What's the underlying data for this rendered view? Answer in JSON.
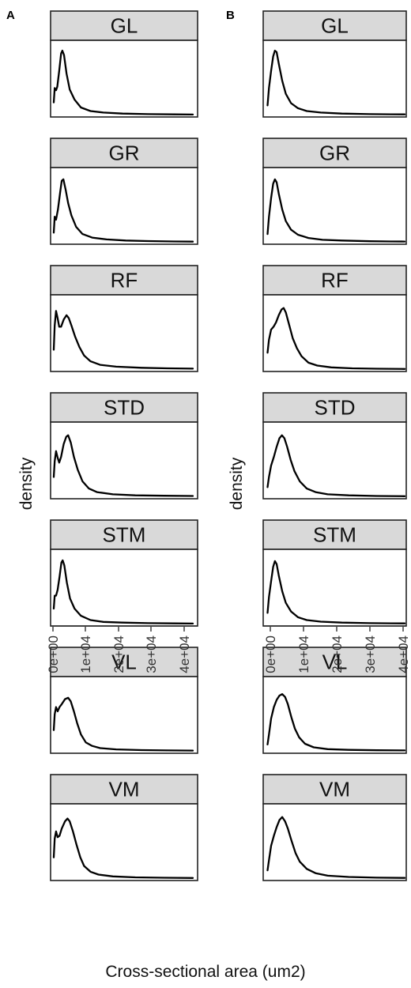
{
  "chart_data": [
    {
      "type": "area",
      "panel": "A",
      "ylabel": "density",
      "xlabel": "Cross-sectional area (um2)",
      "xlim": [
        0,
        45000
      ],
      "x_ticks": [
        "0e+00",
        "1e+04",
        "2e+04",
        "3e+04",
        "4e+04"
      ],
      "facets": [
        {
          "name": "GL",
          "points": [
            [
              500,
              0.18
            ],
            [
              800,
              0.38
            ],
            [
              1200,
              0.35
            ],
            [
              1600,
              0.4
            ],
            [
              2200,
              0.62
            ],
            [
              2800,
              0.86
            ],
            [
              3200,
              0.9
            ],
            [
              3700,
              0.84
            ],
            [
              4500,
              0.58
            ],
            [
              5500,
              0.36
            ],
            [
              7000,
              0.22
            ],
            [
              9000,
              0.11
            ],
            [
              12000,
              0.06
            ],
            [
              16000,
              0.04
            ],
            [
              22000,
              0.025
            ],
            [
              30000,
              0.018
            ],
            [
              38000,
              0.014
            ],
            [
              44000,
              0.012
            ]
          ]
        },
        {
          "name": "GR",
          "points": [
            [
              500,
              0.14
            ],
            [
              800,
              0.36
            ],
            [
              1200,
              0.32
            ],
            [
              1800,
              0.46
            ],
            [
              2500,
              0.7
            ],
            [
              3000,
              0.86
            ],
            [
              3500,
              0.88
            ],
            [
              4200,
              0.74
            ],
            [
              5000,
              0.55
            ],
            [
              6000,
              0.38
            ],
            [
              7500,
              0.22
            ],
            [
              9500,
              0.12
            ],
            [
              12500,
              0.07
            ],
            [
              17000,
              0.045
            ],
            [
              23000,
              0.03
            ],
            [
              30000,
              0.022
            ],
            [
              38000,
              0.016
            ],
            [
              44000,
              0.014
            ]
          ]
        },
        {
          "name": "RF",
          "points": [
            [
              500,
              0.28
            ],
            [
              800,
              0.62
            ],
            [
              1200,
              0.82
            ],
            [
              1700,
              0.72
            ],
            [
              2200,
              0.6
            ],
            [
              2800,
              0.6
            ],
            [
              3600,
              0.7
            ],
            [
              4500,
              0.76
            ],
            [
              5200,
              0.72
            ],
            [
              6000,
              0.62
            ],
            [
              7200,
              0.46
            ],
            [
              8500,
              0.32
            ],
            [
              10000,
              0.2
            ],
            [
              12000,
              0.12
            ],
            [
              15000,
              0.07
            ],
            [
              20000,
              0.045
            ],
            [
              28000,
              0.03
            ],
            [
              36000,
              0.022
            ],
            [
              44000,
              0.018
            ]
          ]
        },
        {
          "name": "STD",
          "points": [
            [
              500,
              0.28
            ],
            [
              800,
              0.5
            ],
            [
              1200,
              0.64
            ],
            [
              1700,
              0.55
            ],
            [
              2200,
              0.48
            ],
            [
              2800,
              0.56
            ],
            [
              3600,
              0.74
            ],
            [
              4400,
              0.84
            ],
            [
              5000,
              0.86
            ],
            [
              5800,
              0.76
            ],
            [
              6800,
              0.56
            ],
            [
              8000,
              0.38
            ],
            [
              9500,
              0.22
            ],
            [
              11500,
              0.12
            ],
            [
              14000,
              0.07
            ],
            [
              19000,
              0.04
            ],
            [
              26000,
              0.025
            ],
            [
              35000,
              0.02
            ],
            [
              44000,
              0.016
            ]
          ]
        },
        {
          "name": "STM",
          "points": [
            [
              500,
              0.22
            ],
            [
              800,
              0.4
            ],
            [
              1200,
              0.4
            ],
            [
              1700,
              0.48
            ],
            [
              2300,
              0.66
            ],
            [
              2900,
              0.86
            ],
            [
              3300,
              0.89
            ],
            [
              3800,
              0.82
            ],
            [
              4600,
              0.58
            ],
            [
              5600,
              0.36
            ],
            [
              7000,
              0.22
            ],
            [
              9000,
              0.12
            ],
            [
              12000,
              0.06
            ],
            [
              16000,
              0.035
            ],
            [
              22000,
              0.025
            ],
            [
              30000,
              0.018
            ],
            [
              38000,
              0.014
            ],
            [
              44000,
              0.012
            ]
          ]
        },
        {
          "name": "VL",
          "points": [
            [
              500,
              0.3
            ],
            [
              800,
              0.52
            ],
            [
              1200,
              0.62
            ],
            [
              1700,
              0.56
            ],
            [
              2300,
              0.62
            ],
            [
              3000,
              0.66
            ],
            [
              4000,
              0.73
            ],
            [
              5000,
              0.75
            ],
            [
              5800,
              0.7
            ],
            [
              6800,
              0.56
            ],
            [
              7800,
              0.4
            ],
            [
              9000,
              0.24
            ],
            [
              10500,
              0.13
            ],
            [
              12500,
              0.08
            ],
            [
              15000,
              0.05
            ],
            [
              20000,
              0.032
            ],
            [
              28000,
              0.022
            ],
            [
              36000,
              0.018
            ],
            [
              44000,
              0.015
            ]
          ]
        },
        {
          "name": "VM",
          "points": [
            [
              500,
              0.3
            ],
            [
              800,
              0.56
            ],
            [
              1200,
              0.66
            ],
            [
              1700,
              0.58
            ],
            [
              2300,
              0.6
            ],
            [
              3000,
              0.7
            ],
            [
              4000,
              0.8
            ],
            [
              4800,
              0.84
            ],
            [
              5500,
              0.8
            ],
            [
              6500,
              0.66
            ],
            [
              7600,
              0.48
            ],
            [
              8800,
              0.3
            ],
            [
              10000,
              0.18
            ],
            [
              12000,
              0.1
            ],
            [
              14500,
              0.06
            ],
            [
              19000,
              0.035
            ],
            [
              26000,
              0.022
            ],
            [
              35000,
              0.016
            ],
            [
              44000,
              0.013
            ]
          ]
        }
      ]
    },
    {
      "type": "area",
      "panel": "B",
      "ylabel": "density",
      "xlabel": "Cross-sectional area (um2)",
      "xlim": [
        0,
        40000
      ],
      "x_ticks": [
        "0e+00",
        "1e+04",
        "2e+04",
        "3e+04",
        "4e+04"
      ],
      "facets": [
        {
          "name": "GL",
          "points": [
            [
              800,
              0.14
            ],
            [
              1200,
              0.38
            ],
            [
              1800,
              0.62
            ],
            [
              2400,
              0.82
            ],
            [
              2900,
              0.9
            ],
            [
              3400,
              0.88
            ],
            [
              4000,
              0.72
            ],
            [
              5000,
              0.48
            ],
            [
              6000,
              0.3
            ],
            [
              7500,
              0.17
            ],
            [
              9500,
              0.1
            ],
            [
              12000,
              0.06
            ],
            [
              16000,
              0.04
            ],
            [
              22000,
              0.025
            ],
            [
              30000,
              0.018
            ],
            [
              36000,
              0.015
            ],
            [
              40000,
              0.014
            ]
          ]
        },
        {
          "name": "GR",
          "points": [
            [
              800,
              0.12
            ],
            [
              1200,
              0.36
            ],
            [
              1800,
              0.62
            ],
            [
              2400,
              0.82
            ],
            [
              2900,
              0.88
            ],
            [
              3400,
              0.84
            ],
            [
              4000,
              0.68
            ],
            [
              5000,
              0.46
            ],
            [
              6000,
              0.3
            ],
            [
              7500,
              0.18
            ],
            [
              9500,
              0.11
            ],
            [
              12500,
              0.065
            ],
            [
              16500,
              0.04
            ],
            [
              22000,
              0.03
            ],
            [
              30000,
              0.02
            ],
            [
              36000,
              0.016
            ],
            [
              40000,
              0.015
            ]
          ]
        },
        {
          "name": "RF",
          "points": [
            [
              800,
              0.24
            ],
            [
              1200,
              0.42
            ],
            [
              1800,
              0.56
            ],
            [
              2500,
              0.6
            ],
            [
              3200,
              0.66
            ],
            [
              4000,
              0.76
            ],
            [
              4800,
              0.84
            ],
            [
              5400,
              0.86
            ],
            [
              6000,
              0.8
            ],
            [
              7000,
              0.62
            ],
            [
              8000,
              0.44
            ],
            [
              9200,
              0.3
            ],
            [
              10500,
              0.19
            ],
            [
              12500,
              0.1
            ],
            [
              15000,
              0.06
            ],
            [
              19000,
              0.035
            ],
            [
              25000,
              0.022
            ],
            [
              32000,
              0.016
            ],
            [
              40000,
              0.013
            ]
          ]
        },
        {
          "name": "STD",
          "points": [
            [
              800,
              0.14
            ],
            [
              1200,
              0.28
            ],
            [
              1800,
              0.44
            ],
            [
              2600,
              0.56
            ],
            [
              3400,
              0.7
            ],
            [
              4200,
              0.82
            ],
            [
              4900,
              0.86
            ],
            [
              5600,
              0.82
            ],
            [
              6400,
              0.7
            ],
            [
              7400,
              0.52
            ],
            [
              8500,
              0.36
            ],
            [
              10000,
              0.22
            ],
            [
              12000,
              0.12
            ],
            [
              14500,
              0.07
            ],
            [
              18000,
              0.04
            ],
            [
              24000,
              0.025
            ],
            [
              32000,
              0.016
            ],
            [
              40000,
              0.013
            ]
          ]
        },
        {
          "name": "STM",
          "points": [
            [
              800,
              0.16
            ],
            [
              1200,
              0.38
            ],
            [
              1800,
              0.6
            ],
            [
              2400,
              0.8
            ],
            [
              2900,
              0.88
            ],
            [
              3400,
              0.84
            ],
            [
              4000,
              0.68
            ],
            [
              5000,
              0.46
            ],
            [
              6000,
              0.3
            ],
            [
              7500,
              0.18
            ],
            [
              9500,
              0.1
            ],
            [
              12000,
              0.06
            ],
            [
              16000,
              0.038
            ],
            [
              22000,
              0.025
            ],
            [
              30000,
              0.018
            ],
            [
              36000,
              0.015
            ],
            [
              40000,
              0.014
            ]
          ]
        },
        {
          "name": "VL",
          "points": [
            [
              800,
              0.1
            ],
            [
              1200,
              0.24
            ],
            [
              1800,
              0.46
            ],
            [
              2600,
              0.62
            ],
            [
              3400,
              0.72
            ],
            [
              4200,
              0.78
            ],
            [
              5000,
              0.8
            ],
            [
              5800,
              0.76
            ],
            [
              6600,
              0.66
            ],
            [
              7600,
              0.48
            ],
            [
              8600,
              0.32
            ],
            [
              9800,
              0.2
            ],
            [
              11500,
              0.11
            ],
            [
              14000,
              0.06
            ],
            [
              18000,
              0.035
            ],
            [
              24000,
              0.025
            ],
            [
              32000,
              0.02
            ],
            [
              40000,
              0.018
            ]
          ]
        },
        {
          "name": "VM",
          "points": [
            [
              800,
              0.12
            ],
            [
              1200,
              0.26
            ],
            [
              1800,
              0.46
            ],
            [
              2600,
              0.6
            ],
            [
              3400,
              0.72
            ],
            [
              4200,
              0.82
            ],
            [
              5000,
              0.86
            ],
            [
              5800,
              0.8
            ],
            [
              6600,
              0.7
            ],
            [
              7600,
              0.54
            ],
            [
              8800,
              0.36
            ],
            [
              10000,
              0.24
            ],
            [
              12000,
              0.14
            ],
            [
              14500,
              0.08
            ],
            [
              18000,
              0.045
            ],
            [
              24000,
              0.028
            ],
            [
              32000,
              0.018
            ],
            [
              40000,
              0.014
            ]
          ]
        }
      ]
    }
  ]
}
